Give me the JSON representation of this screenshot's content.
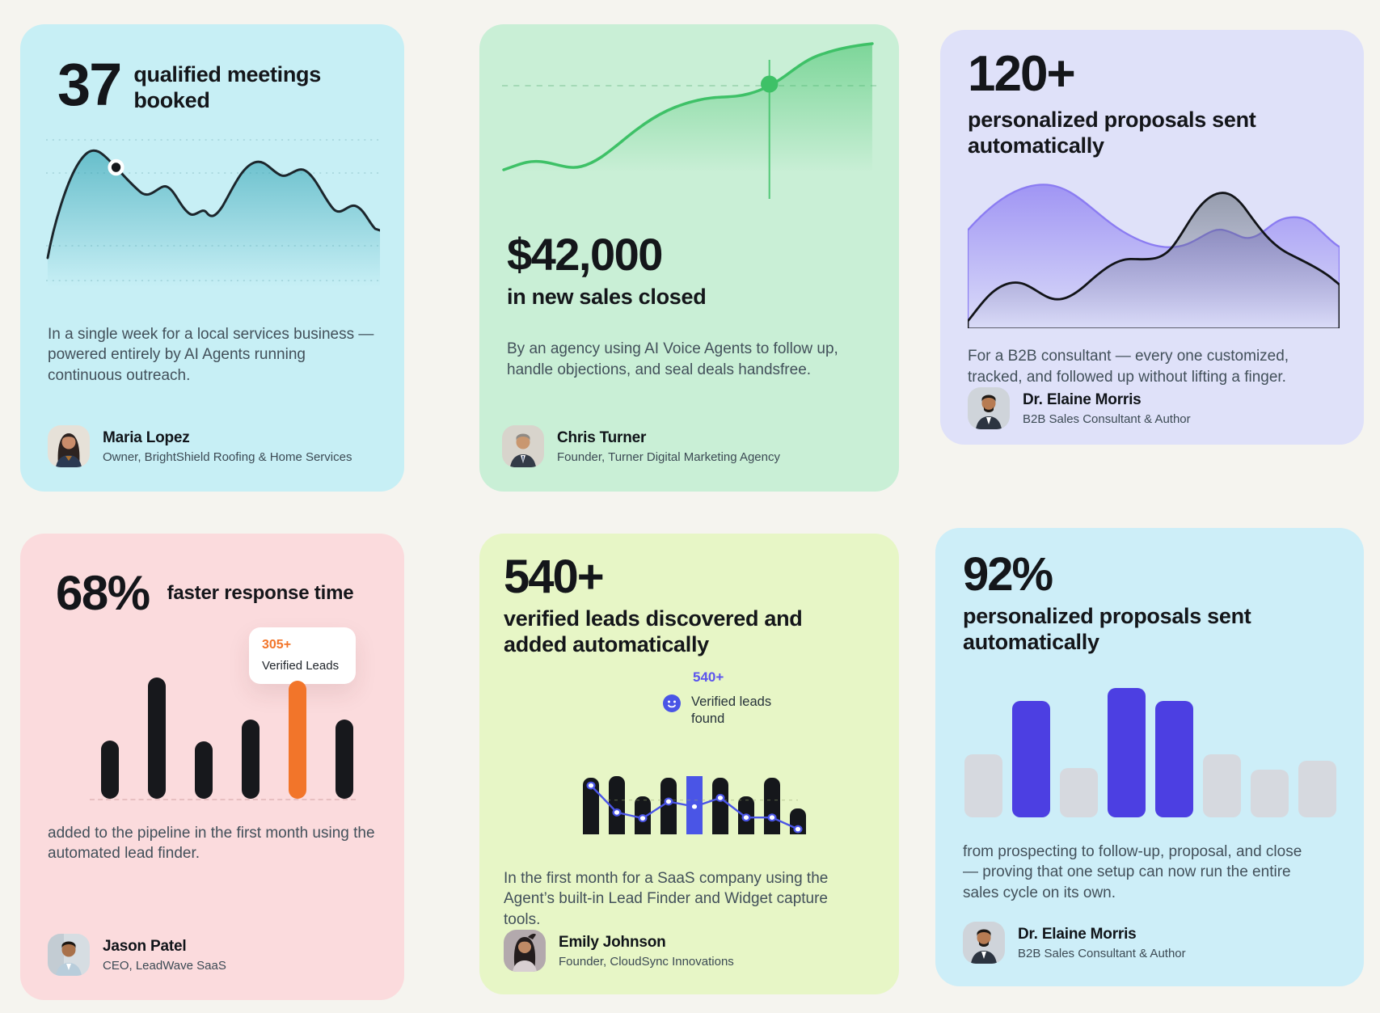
{
  "page": {
    "background": "#f5f4ef"
  },
  "cards": [
    {
      "name": "qualified-meetings",
      "stat": "37",
      "title": "qualified meetings booked",
      "description": "In a single week for a local services business — powered entirely by AI Agents running continuous outreach.",
      "person": {
        "name": "Maria Lopez",
        "role": "Owner, BrightShield Roofing & Home Services"
      },
      "colors": {
        "card_bg": "#c7eff5",
        "line": "#1c262c",
        "fill": "#35a3b5"
      },
      "chart": {
        "type": "area",
        "trend": "wavy sparkline with black marker dot near first peak"
      }
    },
    {
      "name": "new-sales-closed",
      "stat": "$42,000",
      "title": "in new sales closed",
      "description": "By an agency using AI Voice Agents to follow up, handle objections, and seal deals handsfree.",
      "person": {
        "name": "Chris Turner",
        "role": "Founder, Turner Digital Marketing Agency"
      },
      "colors": {
        "card_bg": "#c9efd6",
        "line": "#3ec167"
      },
      "chart": {
        "type": "line",
        "trend": "rising curve with green marker dot and vertical crosshair"
      }
    },
    {
      "name": "proposals-sent-120",
      "stat": "120+",
      "title": "personalized proposals sent automatically",
      "description": "For a B2B consultant — every one customized, tracked, and followed up without lifting a finger.",
      "person": {
        "name": "Dr. Elaine Morris",
        "role": "B2B Sales Consultant & Author"
      },
      "colors": {
        "card_bg": "#dfe1f9",
        "back_wave": "#8b7cf2",
        "front_line": "#121418"
      },
      "chart": {
        "type": "area",
        "trend": "two overlapping mountain waves, purple behind, dark in front"
      }
    },
    {
      "name": "faster-response-time",
      "stat": "68%",
      "title": "faster response time",
      "tooltip": {
        "value": "305+",
        "label": "Verified Leads"
      },
      "description": "added to the pipeline in the first month using the automated lead finder.",
      "person": {
        "name": "Jason Patel",
        "role": "CEO, LeadWave SaaS"
      },
      "colors": {
        "card_bg": "#fbdbdd",
        "bar": "#17181c",
        "highlight": "#f2752a"
      },
      "chart": {
        "type": "bar",
        "values": [
          48,
          100,
          47,
          65,
          97,
          65
        ],
        "highlight_index": 4
      }
    },
    {
      "name": "verified-leads-540",
      "stat": "540+",
      "title": "verified leads discovered and added automatically",
      "badge": {
        "value": "540+",
        "label": "Verified leads found"
      },
      "description": "In the first month for a SaaS company using the Agent’s built-in Lead Finder and Widget capture tools.",
      "person": {
        "name": "Emily Johnson",
        "role": "Founder, CloudSync Innovations"
      },
      "colors": {
        "card_bg": "#e7f6c6",
        "bar": "#15171b",
        "highlight": "#4a55e6"
      },
      "chart": {
        "type": "bar+line",
        "values": [
          97,
          100,
          65,
          97,
          100,
          97,
          65,
          97,
          44
        ],
        "highlight_index": 4,
        "line_trend": "declining zigzag with dot markers"
      }
    },
    {
      "name": "proposals-sent-92",
      "stat": "92%",
      "title": "personalized proposals sent automatically",
      "description": "from prospecting to follow-up, proposal, and close — proving that one setup can now run the entire sales cycle on its own.",
      "person": {
        "name": "Dr. Elaine Morris",
        "role": "B2B Sales Consultant & Author"
      },
      "colors": {
        "card_bg": "#cdeef8",
        "bar_muted": "#d6d9df",
        "bar_accent": "#4c3fe2"
      },
      "chart": {
        "type": "bar",
        "values": [
          49,
          90,
          38,
          100,
          90,
          49,
          37,
          44
        ],
        "accent_indices": [
          1,
          3,
          4
        ]
      }
    }
  ]
}
